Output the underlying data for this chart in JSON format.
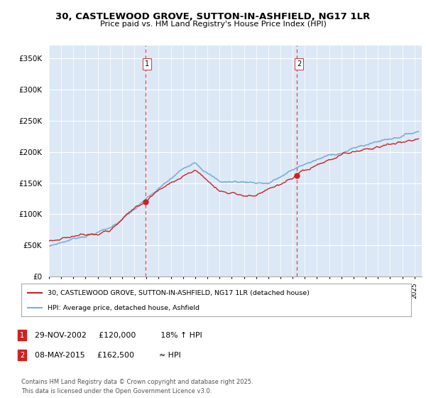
{
  "title": "30, CASTLEWOOD GROVE, SUTTON-IN-ASHFIELD, NG17 1LR",
  "subtitle": "Price paid vs. HM Land Registry's House Price Index (HPI)",
  "ylim": [
    0,
    370000
  ],
  "yticks": [
    0,
    50000,
    100000,
    150000,
    200000,
    250000,
    300000,
    350000
  ],
  "ytick_labels": [
    "£0",
    "£50K",
    "£100K",
    "£150K",
    "£200K",
    "£250K",
    "£300K",
    "£350K"
  ],
  "sale1_date": 2002.92,
  "sale1_price": 120000,
  "sale2_date": 2015.37,
  "sale2_price": 162500,
  "legend_line1": "30, CASTLEWOOD GROVE, SUTTON-IN-ASHFIELD, NG17 1LR (detached house)",
  "legend_line2": "HPI: Average price, detached house, Ashfield",
  "annotation1_text": "29-NOV-2002     £120,000          18% ↑ HPI",
  "annotation2_text": "08-MAY-2015     £162,500          ≈ HPI",
  "footer": "Contains HM Land Registry data © Crown copyright and database right 2025.\nThis data is licensed under the Open Government Licence v3.0.",
  "hpi_color": "#7bafd4",
  "price_color": "#cc2222",
  "vline_color": "#dd4444",
  "background_color": "#dce8f5",
  "plot_bg_color": "#ffffff",
  "grid_color": "#ffffff",
  "xlim_start": 1995.0,
  "xlim_end": 2025.6
}
